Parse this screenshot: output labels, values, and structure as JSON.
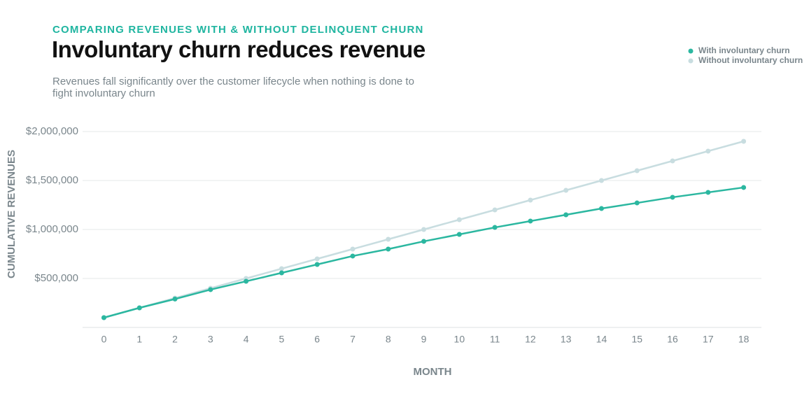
{
  "chart_data": {
    "type": "line",
    "kicker": "COMPARING REVENUES WITH & WITHOUT DELINQUENT CHURN",
    "title": "Involuntary churn reduces revenue",
    "subtitle": "Revenues fall significantly over the customer lifecycle when nothing is done to fight involuntary churn",
    "x_label": "MONTH",
    "y_label": "CUMULATIVE REVENUES",
    "x": [
      0,
      1,
      2,
      3,
      4,
      5,
      6,
      7,
      8,
      9,
      10,
      11,
      12,
      13,
      14,
      15,
      16,
      17,
      18
    ],
    "xlim": [
      -0.6,
      18.5
    ],
    "xticks": [
      0,
      1,
      2,
      3,
      4,
      5,
      6,
      7,
      8,
      9,
      10,
      11,
      12,
      13,
      14,
      15,
      16,
      17,
      18
    ],
    "ylim": [
      0,
      2000000
    ],
    "yticks": [
      {
        "value": 500000,
        "label": "$500,000"
      },
      {
        "value": 1000000,
        "label": "$1,000,000"
      },
      {
        "value": 1500000,
        "label": "$1,500,000"
      },
      {
        "value": 2000000,
        "label": "$2,000,000"
      }
    ],
    "grid": true,
    "series": [
      {
        "name": "With involuntary churn",
        "color": "#2bb7a0",
        "values": [
          100000,
          200000,
          290000,
          386000,
          471000,
          557000,
          643000,
          729000,
          800000,
          879000,
          950000,
          1021000,
          1086000,
          1150000,
          1214000,
          1271000,
          1329000,
          1379000,
          1429000
        ]
      },
      {
        "name": "Without involuntary churn",
        "color": "#c8dde0",
        "values": [
          100000,
          200000,
          300000,
          400000,
          500000,
          600000,
          700000,
          800000,
          900000,
          1000000,
          1100000,
          1200000,
          1300000,
          1400000,
          1500000,
          1600000,
          1700000,
          1800000,
          1900000
        ]
      }
    ]
  }
}
